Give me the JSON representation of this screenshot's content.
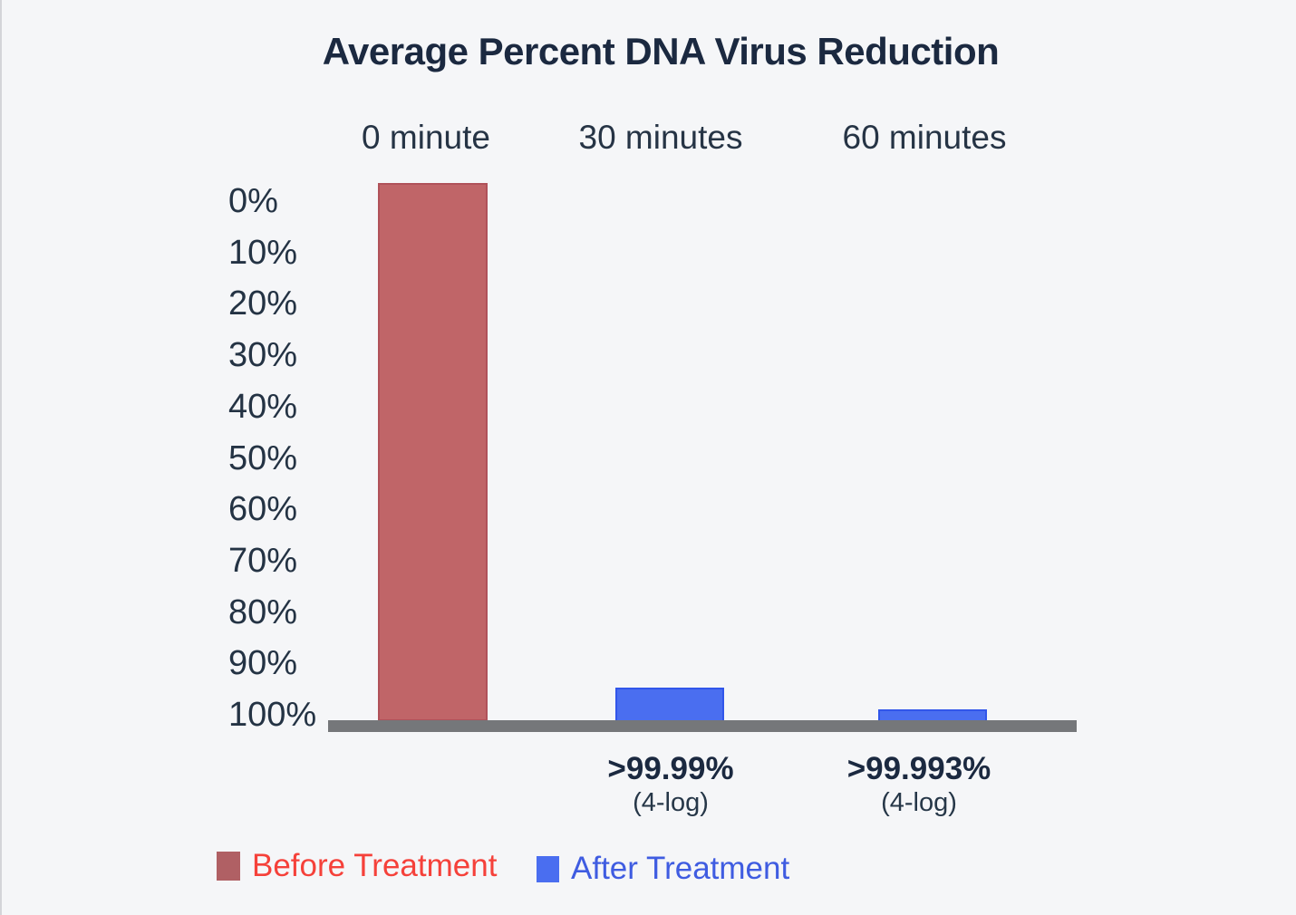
{
  "chart_data": {
    "type": "bar",
    "title": "Average Percent DNA Virus Reduction",
    "categories": [
      "0 minute",
      "30 minutes",
      "60 minutes"
    ],
    "y_axis": {
      "ticks": [
        "0%",
        "10%",
        "20%",
        "30%",
        "40%",
        "50%",
        "60%",
        "70%",
        "80%",
        "90%",
        "100%"
      ],
      "orientation": "inverted",
      "note": "0% at top, 100% at baseline; bars hang toward the 100% baseline"
    },
    "series": [
      {
        "name": "Before Treatment",
        "color": "#c06568",
        "values": [
          0,
          null,
          null
        ],
        "unit": "percent reduction"
      },
      {
        "name": "After Treatment",
        "color": "#4a6ef0",
        "values": [
          null,
          99.99,
          99.993
        ],
        "unit": "percent reduction"
      }
    ],
    "annotations": [
      {
        "category": "30 minutes",
        "label": ">99.99%",
        "sub_label": "(4-log)"
      },
      {
        "category": "60 minutes",
        "label": ">99.993%",
        "sub_label": "(4-log)"
      }
    ],
    "legend": [
      {
        "label": "Before Treatment",
        "swatch_color": "#b06064",
        "text_color": "#f5413a"
      },
      {
        "label": "After Treatment",
        "swatch_color": "#4a6ef0",
        "text_color": "#3f5ce1"
      }
    ],
    "legend_position": "bottom-left",
    "axis_color": "#75777a",
    "background_color": "#f5f6f8",
    "title_color": "#1b2940",
    "grid": false
  }
}
